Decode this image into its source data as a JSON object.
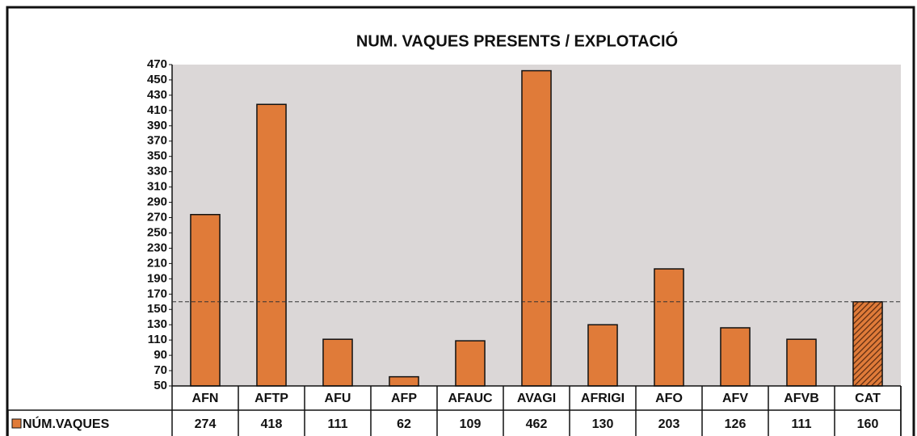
{
  "chart_data": {
    "type": "bar",
    "title": "NUM. VAQUES PRESENTS / EXPLOTACIÓ",
    "categories": [
      "AFN",
      "AFTP",
      "AFU",
      "AFP",
      "AFAUC",
      "AVAGI",
      "AFRIGI",
      "AFO",
      "AFV",
      "AFVB",
      "CAT"
    ],
    "series": [
      {
        "name": "NÚM.VAQUES",
        "color": "#e07b39",
        "values": [
          274,
          418,
          111,
          62,
          109,
          462,
          130,
          203,
          126,
          111,
          160
        ]
      }
    ],
    "ylim": [
      50,
      470
    ],
    "yticks": [
      50,
      70,
      90,
      110,
      130,
      150,
      170,
      190,
      210,
      230,
      250,
      270,
      290,
      310,
      330,
      350,
      370,
      390,
      410,
      430,
      450,
      470
    ],
    "reference_line": 160,
    "hatched_category": "CAT",
    "data_table": true
  }
}
